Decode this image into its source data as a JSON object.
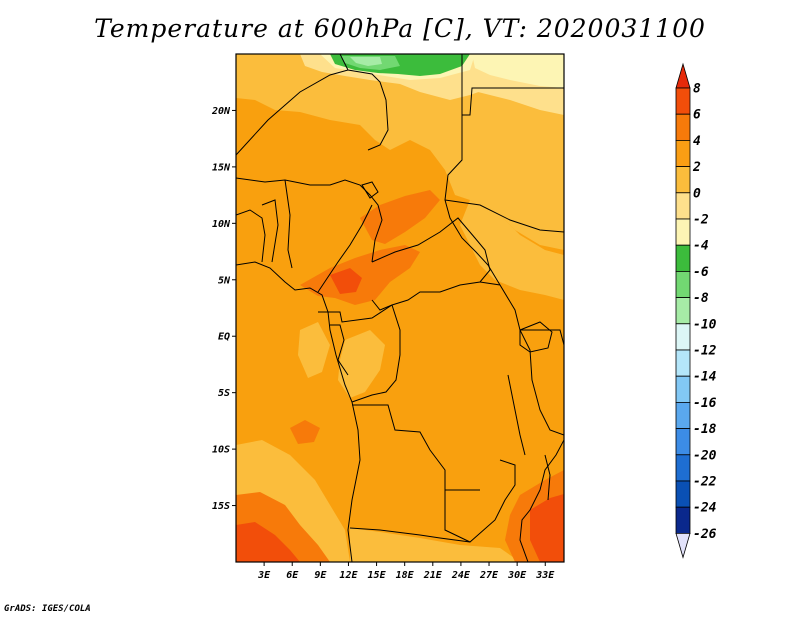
{
  "title": "Temperature at 600hPa [C], VT: 2020031100",
  "credit": "GrADS: IGES/COLA",
  "map": {
    "lon_range": [
      0,
      35
    ],
    "lat_range": [
      -20,
      25
    ],
    "lat_ticks": [
      {
        "value": 20,
        "label": "20N"
      },
      {
        "value": 15,
        "label": "15N"
      },
      {
        "value": 10,
        "label": "10N"
      },
      {
        "value": 5,
        "label": "5N"
      },
      {
        "value": 0,
        "label": "EQ"
      },
      {
        "value": -5,
        "label": "5S"
      },
      {
        "value": -10,
        "label": "10S"
      },
      {
        "value": -15,
        "label": "15S"
      }
    ],
    "lon_ticks": [
      {
        "value": 3,
        "label": "3E"
      },
      {
        "value": 6,
        "label": "6E"
      },
      {
        "value": 9,
        "label": "9E"
      },
      {
        "value": 12,
        "label": "12E"
      },
      {
        "value": 15,
        "label": "15E"
      },
      {
        "value": 18,
        "label": "18E"
      },
      {
        "value": 21,
        "label": "21E"
      },
      {
        "value": 24,
        "label": "24E"
      },
      {
        "value": 27,
        "label": "27E"
      },
      {
        "value": 30,
        "label": "30E"
      },
      {
        "value": 33,
        "label": "33E"
      }
    ]
  },
  "colorbar": {
    "labels": [
      "8",
      "6",
      "4",
      "2",
      "0",
      "-2",
      "-4",
      "-6",
      "-8",
      "-10",
      "-12",
      "-14",
      "-16",
      "-18",
      "-20",
      "-22",
      "-24",
      "-26"
    ],
    "colors": [
      "#e62a0a",
      "#f24e0a",
      "#f77a0a",
      "#fa9e14",
      "#fbbd3c",
      "#fee08c",
      "#fdf5b4",
      "#3cbc3c",
      "#72d872",
      "#a6eca6",
      "#dcf6f6",
      "#b4e6fa",
      "#82c8f5",
      "#5aa8ee",
      "#3c8ce6",
      "#1e6ed2",
      "#0a50b4",
      "#0a288c",
      "#000a50",
      "#e2e2fa"
    ]
  }
}
